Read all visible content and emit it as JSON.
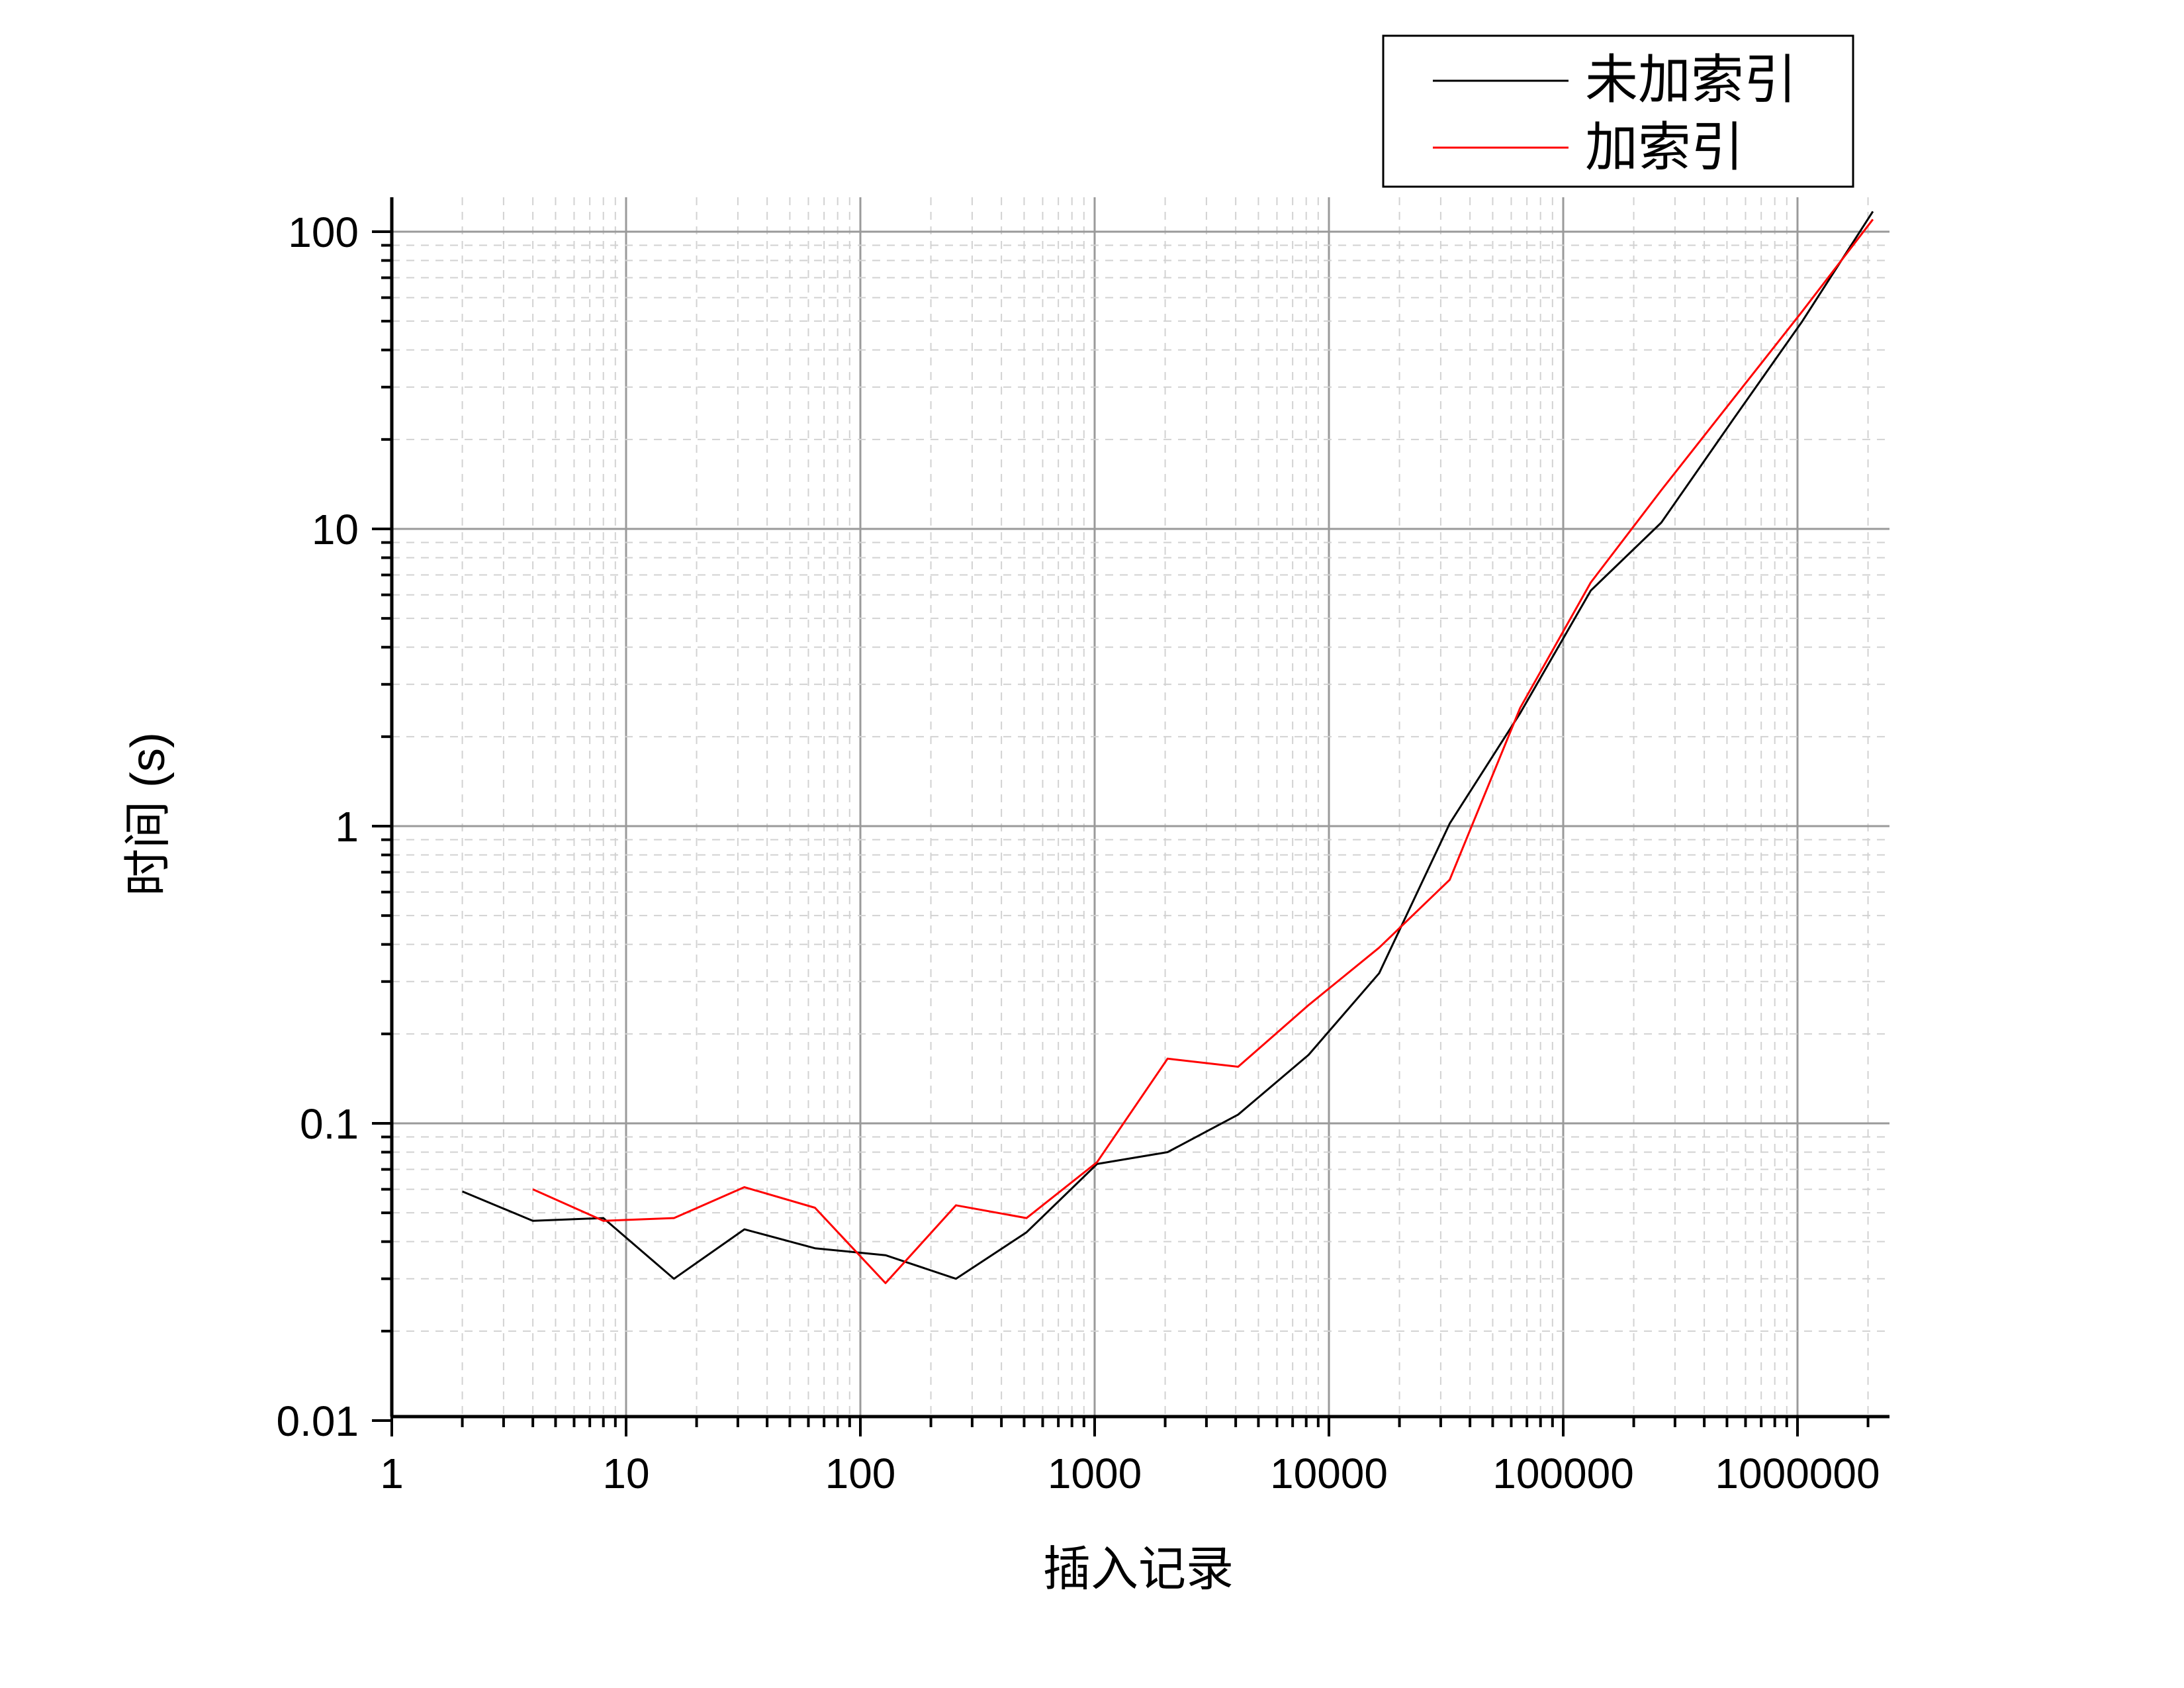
{
  "chart_data": {
    "type": "line",
    "xlabel": "插入记录",
    "ylabel": "时间 (s)",
    "xscale": "log",
    "yscale": "log",
    "xlim": [
      1,
      3000000
    ],
    "ylim": [
      0.01,
      100
    ],
    "x_ticks": [
      1,
      10,
      100,
      1000,
      10000,
      100000,
      1000000
    ],
    "x_tick_labels": [
      "1",
      "10",
      "100",
      "1000",
      "10000",
      "100000",
      "1000000"
    ],
    "y_ticks": [
      0.01,
      0.1,
      1,
      10,
      100
    ],
    "y_tick_labels": [
      "0.01",
      "0.1",
      "1",
      "10",
      "100"
    ],
    "grid": true,
    "legend_position": "top-right",
    "series": [
      {
        "name": "未加索引",
        "color": "#000000",
        "points": [
          [
            2,
            0.059
          ],
          [
            4,
            0.047
          ],
          [
            8,
            0.048
          ],
          [
            16,
            0.03
          ],
          [
            32,
            0.044
          ],
          [
            64,
            0.038
          ],
          [
            128,
            0.036
          ],
          [
            256,
            0.03
          ],
          [
            512,
            0.043
          ],
          [
            1024,
            0.073
          ],
          [
            2048,
            0.08
          ],
          [
            4096,
            0.107
          ],
          [
            8192,
            0.17
          ],
          [
            16384,
            0.32
          ],
          [
            32768,
            1.02
          ],
          [
            65536,
            2.4
          ],
          [
            131072,
            6.2
          ],
          [
            262144,
            10.5
          ],
          [
            524288,
            23
          ],
          [
            1048576,
            50
          ],
          [
            2097152,
            117
          ]
        ]
      },
      {
        "name": "加索引",
        "color": "#ff0000",
        "points": [
          [
            4,
            0.06
          ],
          [
            8,
            0.047
          ],
          [
            16,
            0.048
          ],
          [
            32,
            0.061
          ],
          [
            64,
            0.052
          ],
          [
            128,
            0.029
          ],
          [
            256,
            0.053
          ],
          [
            512,
            0.048
          ],
          [
            1024,
            0.074
          ],
          [
            2048,
            0.165
          ],
          [
            4096,
            0.155
          ],
          [
            8192,
            0.25
          ],
          [
            16384,
            0.39
          ],
          [
            32768,
            0.66
          ],
          [
            65536,
            2.5
          ],
          [
            131072,
            6.6
          ],
          [
            262144,
            13.5
          ],
          [
            524288,
            27
          ],
          [
            1048576,
            54
          ],
          [
            2097152,
            110
          ]
        ]
      }
    ]
  }
}
